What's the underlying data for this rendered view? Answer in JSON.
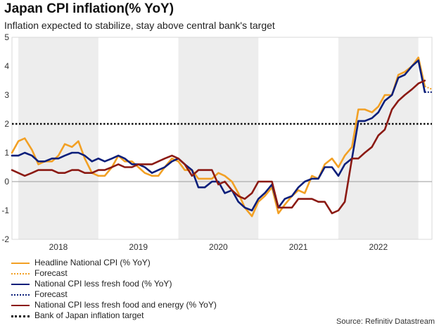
{
  "header": {
    "title": "Japan CPI inflation(% YoY)",
    "subtitle": "Inflation expected to stabilize, stay above central bank's target"
  },
  "source": "Source: Refinitiv Datastream",
  "colors": {
    "headline": "#F2A024",
    "core": "#0A1E7A",
    "core_core": "#8B1A13",
    "target": "#111111",
    "shade": "#EDEDED",
    "zero_line": "#9A9A9A",
    "axis_text": "#333333"
  },
  "legend": [
    {
      "label": "Headline National CPI (% YoY)",
      "color": "#F2A024",
      "style": "solid"
    },
    {
      "label": "Forecast",
      "color": "#F2A024",
      "style": "dotted"
    },
    {
      "label": "National CPI less fresh food (% YoY)",
      "color": "#0A1E7A",
      "style": "solid"
    },
    {
      "label": "Forecast",
      "color": "#0A1E7A",
      "style": "dotted"
    },
    {
      "label": "National CPI less fresh food and energy (% YoY)",
      "color": "#8B1A13",
      "style": "solid"
    },
    {
      "label": "Bank of Japan inflation target",
      "color": "#111111",
      "style": "dotted"
    }
  ],
  "chart_data": {
    "type": "line",
    "title": "Japan CPI inflation(% YoY)",
    "xlabel": "",
    "ylabel": "% YoY",
    "ylim": [
      -2,
      5
    ],
    "yticks": [
      -2,
      -1,
      0,
      1,
      2,
      3,
      4,
      5
    ],
    "years": [
      "2018",
      "2019",
      "2020",
      "2021",
      "2022"
    ],
    "shaded_years": [
      "2018",
      "2020",
      "2022"
    ],
    "x_start": 2017.92,
    "x_end": 2023.17,
    "target": {
      "name": "Bank of Japan inflation target",
      "value": 2
    },
    "series": [
      {
        "name": "Headline National CPI (% YoY)",
        "color": "#F2A024",
        "values": [
          [
            2017.92,
            1.0
          ],
          [
            2018.0,
            1.4
          ],
          [
            2018.08,
            1.5
          ],
          [
            2018.17,
            1.1
          ],
          [
            2018.25,
            0.6
          ],
          [
            2018.33,
            0.7
          ],
          [
            2018.42,
            0.7
          ],
          [
            2018.5,
            0.9
          ],
          [
            2018.58,
            1.3
          ],
          [
            2018.67,
            1.2
          ],
          [
            2018.75,
            1.4
          ],
          [
            2018.83,
            0.8
          ],
          [
            2018.92,
            0.3
          ],
          [
            2019.0,
            0.2
          ],
          [
            2019.08,
            0.2
          ],
          [
            2019.17,
            0.5
          ],
          [
            2019.25,
            0.9
          ],
          [
            2019.33,
            0.7
          ],
          [
            2019.42,
            0.7
          ],
          [
            2019.5,
            0.5
          ],
          [
            2019.58,
            0.3
          ],
          [
            2019.67,
            0.2
          ],
          [
            2019.75,
            0.2
          ],
          [
            2019.83,
            0.5
          ],
          [
            2019.92,
            0.8
          ],
          [
            2020.0,
            0.7
          ],
          [
            2020.08,
            0.4
          ],
          [
            2020.17,
            0.4
          ],
          [
            2020.25,
            0.1
          ],
          [
            2020.33,
            0.1
          ],
          [
            2020.42,
            0.1
          ],
          [
            2020.5,
            0.3
          ],
          [
            2020.58,
            0.2
          ],
          [
            2020.67,
            0.0
          ],
          [
            2020.75,
            -0.4
          ],
          [
            2020.83,
            -0.9
          ],
          [
            2020.92,
            -1.2
          ],
          [
            2021.0,
            -0.7
          ],
          [
            2021.08,
            -0.5
          ],
          [
            2021.17,
            -0.2
          ],
          [
            2021.25,
            -1.1
          ],
          [
            2021.33,
            -0.8
          ],
          [
            2021.42,
            -0.5
          ],
          [
            2021.5,
            -0.3
          ],
          [
            2021.58,
            -0.4
          ],
          [
            2021.67,
            0.2
          ],
          [
            2021.75,
            0.1
          ],
          [
            2021.83,
            0.6
          ],
          [
            2021.92,
            0.8
          ],
          [
            2022.0,
            0.5
          ],
          [
            2022.08,
            0.9
          ],
          [
            2022.17,
            1.2
          ],
          [
            2022.25,
            2.5
          ],
          [
            2022.33,
            2.5
          ],
          [
            2022.42,
            2.4
          ],
          [
            2022.5,
            2.6
          ],
          [
            2022.58,
            3.0
          ],
          [
            2022.67,
            3.0
          ],
          [
            2022.75,
            3.7
          ],
          [
            2022.83,
            3.8
          ],
          [
            2022.92,
            4.0
          ],
          [
            2023.0,
            4.3
          ],
          [
            2023.08,
            3.3
          ]
        ],
        "forecast": [
          [
            2023.08,
            3.3
          ],
          [
            2023.17,
            3.2
          ]
        ]
      },
      {
        "name": "National CPI less fresh food (% YoY)",
        "color": "#0A1E7A",
        "values": [
          [
            2017.92,
            0.9
          ],
          [
            2018.0,
            0.9
          ],
          [
            2018.08,
            1.0
          ],
          [
            2018.17,
            0.9
          ],
          [
            2018.25,
            0.7
          ],
          [
            2018.33,
            0.7
          ],
          [
            2018.42,
            0.8
          ],
          [
            2018.5,
            0.8
          ],
          [
            2018.58,
            0.9
          ],
          [
            2018.67,
            1.0
          ],
          [
            2018.75,
            1.0
          ],
          [
            2018.83,
            0.9
          ],
          [
            2018.92,
            0.7
          ],
          [
            2019.0,
            0.8
          ],
          [
            2019.08,
            0.7
          ],
          [
            2019.17,
            0.8
          ],
          [
            2019.25,
            0.9
          ],
          [
            2019.33,
            0.8
          ],
          [
            2019.42,
            0.6
          ],
          [
            2019.5,
            0.6
          ],
          [
            2019.58,
            0.5
          ],
          [
            2019.67,
            0.3
          ],
          [
            2019.75,
            0.4
          ],
          [
            2019.83,
            0.5
          ],
          [
            2019.92,
            0.7
          ],
          [
            2020.0,
            0.8
          ],
          [
            2020.08,
            0.6
          ],
          [
            2020.17,
            0.4
          ],
          [
            2020.25,
            -0.2
          ],
          [
            2020.33,
            -0.2
          ],
          [
            2020.42,
            0.0
          ],
          [
            2020.5,
            0.0
          ],
          [
            2020.58,
            -0.4
          ],
          [
            2020.67,
            -0.3
          ],
          [
            2020.75,
            -0.7
          ],
          [
            2020.83,
            -0.9
          ],
          [
            2020.92,
            -1.0
          ],
          [
            2021.0,
            -0.6
          ],
          [
            2021.08,
            -0.4
          ],
          [
            2021.17,
            -0.1
          ],
          [
            2021.25,
            -0.9
          ],
          [
            2021.33,
            -0.6
          ],
          [
            2021.42,
            -0.5
          ],
          [
            2021.5,
            -0.2
          ],
          [
            2021.58,
            0.0
          ],
          [
            2021.67,
            0.1
          ],
          [
            2021.75,
            0.1
          ],
          [
            2021.83,
            0.5
          ],
          [
            2021.92,
            0.5
          ],
          [
            2022.0,
            0.2
          ],
          [
            2022.08,
            0.6
          ],
          [
            2022.17,
            0.8
          ],
          [
            2022.25,
            2.1
          ],
          [
            2022.33,
            2.1
          ],
          [
            2022.42,
            2.2
          ],
          [
            2022.5,
            2.4
          ],
          [
            2022.58,
            2.8
          ],
          [
            2022.67,
            3.0
          ],
          [
            2022.75,
            3.6
          ],
          [
            2022.83,
            3.7
          ],
          [
            2022.92,
            4.0
          ],
          [
            2023.0,
            4.2
          ],
          [
            2023.08,
            3.1
          ]
        ],
        "forecast": [
          [
            2023.08,
            3.1
          ],
          [
            2023.17,
            3.1
          ]
        ]
      },
      {
        "name": "National CPI less fresh food and energy (% YoY)",
        "color": "#8B1A13",
        "values": [
          [
            2017.92,
            0.4
          ],
          [
            2018.0,
            0.3
          ],
          [
            2018.08,
            0.2
          ],
          [
            2018.17,
            0.3
          ],
          [
            2018.25,
            0.4
          ],
          [
            2018.33,
            0.4
          ],
          [
            2018.42,
            0.4
          ],
          [
            2018.5,
            0.3
          ],
          [
            2018.58,
            0.3
          ],
          [
            2018.67,
            0.4
          ],
          [
            2018.75,
            0.4
          ],
          [
            2018.83,
            0.3
          ],
          [
            2018.92,
            0.3
          ],
          [
            2019.0,
            0.4
          ],
          [
            2019.08,
            0.4
          ],
          [
            2019.17,
            0.5
          ],
          [
            2019.25,
            0.6
          ],
          [
            2019.33,
            0.5
          ],
          [
            2019.42,
            0.5
          ],
          [
            2019.5,
            0.6
          ],
          [
            2019.58,
            0.6
          ],
          [
            2019.67,
            0.6
          ],
          [
            2019.75,
            0.7
          ],
          [
            2019.83,
            0.8
          ],
          [
            2019.92,
            0.9
          ],
          [
            2020.0,
            0.8
          ],
          [
            2020.08,
            0.6
          ],
          [
            2020.17,
            0.2
          ],
          [
            2020.25,
            0.4
          ],
          [
            2020.33,
            0.4
          ],
          [
            2020.42,
            0.4
          ],
          [
            2020.5,
            -0.1
          ],
          [
            2020.58,
            0.0
          ],
          [
            2020.67,
            -0.3
          ],
          [
            2020.75,
            -0.5
          ],
          [
            2020.83,
            -0.6
          ],
          [
            2020.92,
            -0.4
          ],
          [
            2021.0,
            0.0
          ],
          [
            2021.08,
            0.0
          ],
          [
            2021.17,
            0.0
          ],
          [
            2021.25,
            -0.9
          ],
          [
            2021.33,
            -0.9
          ],
          [
            2021.42,
            -0.9
          ],
          [
            2021.5,
            -0.6
          ],
          [
            2021.58,
            -0.6
          ],
          [
            2021.67,
            -0.6
          ],
          [
            2021.75,
            -0.7
          ],
          [
            2021.83,
            -0.7
          ],
          [
            2021.92,
            -1.1
          ],
          [
            2022.0,
            -1.0
          ],
          [
            2022.08,
            -0.7
          ],
          [
            2022.17,
            0.8
          ],
          [
            2022.25,
            0.8
          ],
          [
            2022.33,
            1.0
          ],
          [
            2022.42,
            1.2
          ],
          [
            2022.5,
            1.6
          ],
          [
            2022.58,
            1.8
          ],
          [
            2022.67,
            2.5
          ],
          [
            2022.75,
            2.8
          ],
          [
            2022.83,
            3.0
          ],
          [
            2022.92,
            3.2
          ],
          [
            2023.0,
            3.4
          ],
          [
            2023.08,
            3.5
          ]
        ]
      }
    ]
  }
}
